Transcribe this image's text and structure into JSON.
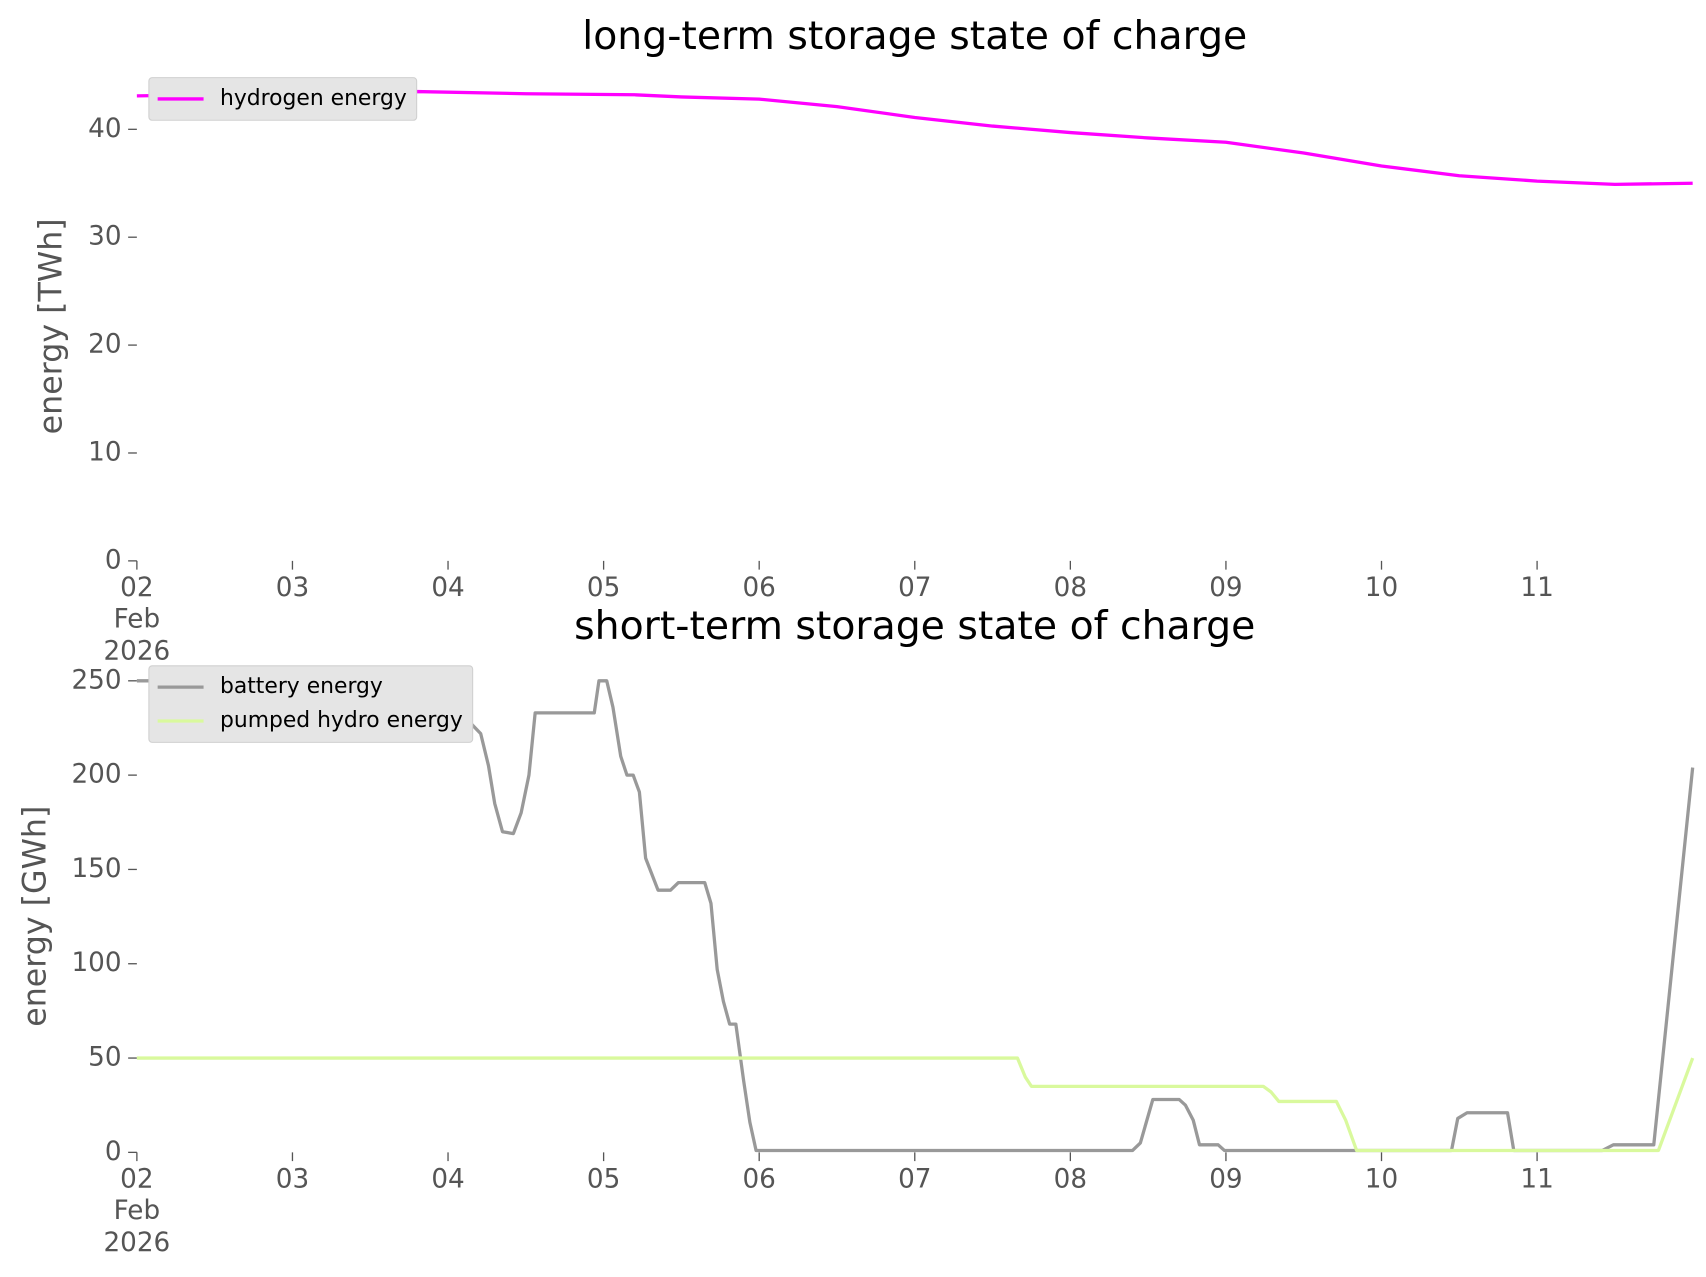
{
  "chart_data": [
    {
      "type": "line",
      "title": "long-term storage state of charge",
      "ylabel": "energy [TWh]",
      "xlim": [
        2,
        12
      ],
      "ylim": [
        0,
        45.5
      ],
      "yticks": [
        0,
        10,
        20,
        30,
        40
      ],
      "xticks": [
        {
          "value": 2,
          "label": "02\nFeb\n2026"
        },
        {
          "value": 3,
          "label": "03"
        },
        {
          "value": 4,
          "label": "04"
        },
        {
          "value": 5,
          "label": "05"
        },
        {
          "value": 6,
          "label": "06"
        },
        {
          "value": 7,
          "label": "07"
        },
        {
          "value": 8,
          "label": "08"
        },
        {
          "value": 9,
          "label": "09"
        },
        {
          "value": 10,
          "label": "10"
        },
        {
          "value": 11,
          "label": "11"
        }
      ],
      "legend": "upper left",
      "series": [
        {
          "name": "hydrogen energy",
          "color": "#ff00ff",
          "x": [
            2,
            3.8,
            4.5,
            5.2,
            5.5,
            6,
            6.5,
            7,
            7.5,
            8,
            8.5,
            9,
            9.5,
            10,
            10.5,
            11,
            11.5,
            12
          ],
          "values": [
            43.1,
            43.5,
            43.3,
            43.2,
            43.0,
            42.8,
            42.1,
            41.1,
            40.3,
            39.7,
            39.2,
            38.8,
            37.8,
            36.6,
            35.7,
            35.2,
            34.9,
            35.0
          ]
        }
      ]
    },
    {
      "type": "line",
      "title": "short-term storage state of charge",
      "ylabel": "energy [GWh]",
      "xlim": [
        2,
        12
      ],
      "ylim": [
        0,
        262
      ],
      "yticks": [
        0,
        50,
        100,
        150,
        200,
        250
      ],
      "xticks": [
        {
          "value": 2,
          "label": "02\nFeb\n2026"
        },
        {
          "value": 3,
          "label": "03"
        },
        {
          "value": 4,
          "label": "04"
        },
        {
          "value": 5,
          "label": "05"
        },
        {
          "value": 6,
          "label": "06"
        },
        {
          "value": 7,
          "label": "07"
        },
        {
          "value": 8,
          "label": "08"
        },
        {
          "value": 9,
          "label": "09"
        },
        {
          "value": 10,
          "label": "10"
        },
        {
          "value": 11,
          "label": "11"
        }
      ],
      "legend": "upper left",
      "series": [
        {
          "name": "battery energy",
          "color": "#999999",
          "x": [
            2,
            4.0,
            4.06,
            4.14,
            4.21,
            4.26,
            4.3,
            4.35,
            4.42,
            4.47,
            4.52,
            4.56,
            4.94,
            4.97,
            5.02,
            5.06,
            5.11,
            5.15,
            5.19,
            5.23,
            5.27,
            5.35,
            5.43,
            5.48,
            5.65,
            5.69,
            5.73,
            5.77,
            5.81,
            5.85,
            5.9,
            5.94,
            5.98,
            8.4,
            8.45,
            8.53,
            8.7,
            8.74,
            8.79,
            8.83,
            8.95,
            8.99,
            10.45,
            10.49,
            10.55,
            10.81,
            10.85,
            11.42,
            11.49,
            11.75,
            12
          ],
          "values": [
            250,
            250,
            232,
            228,
            222,
            205,
            185,
            170,
            169,
            180,
            200,
            233,
            233,
            250,
            250,
            236,
            210,
            200,
            200,
            191,
            156,
            139,
            139,
            143,
            143,
            132,
            97,
            80,
            68,
            68,
            38,
            16,
            1,
            1,
            5,
            28,
            28,
            25,
            17,
            4,
            4,
            1,
            1,
            18,
            21,
            21,
            1,
            1,
            4,
            4,
            204
          ]
        },
        {
          "name": "pumped hydro energy",
          "color": "#d9f99d",
          "x": [
            2,
            7.66,
            7.71,
            7.75,
            9.24,
            9.29,
            9.34,
            9.71,
            9.77,
            9.84,
            11.78,
            12
          ],
          "values": [
            50,
            50,
            40,
            35,
            35,
            32,
            27,
            27,
            17,
            1,
            1,
            50
          ]
        }
      ]
    }
  ]
}
